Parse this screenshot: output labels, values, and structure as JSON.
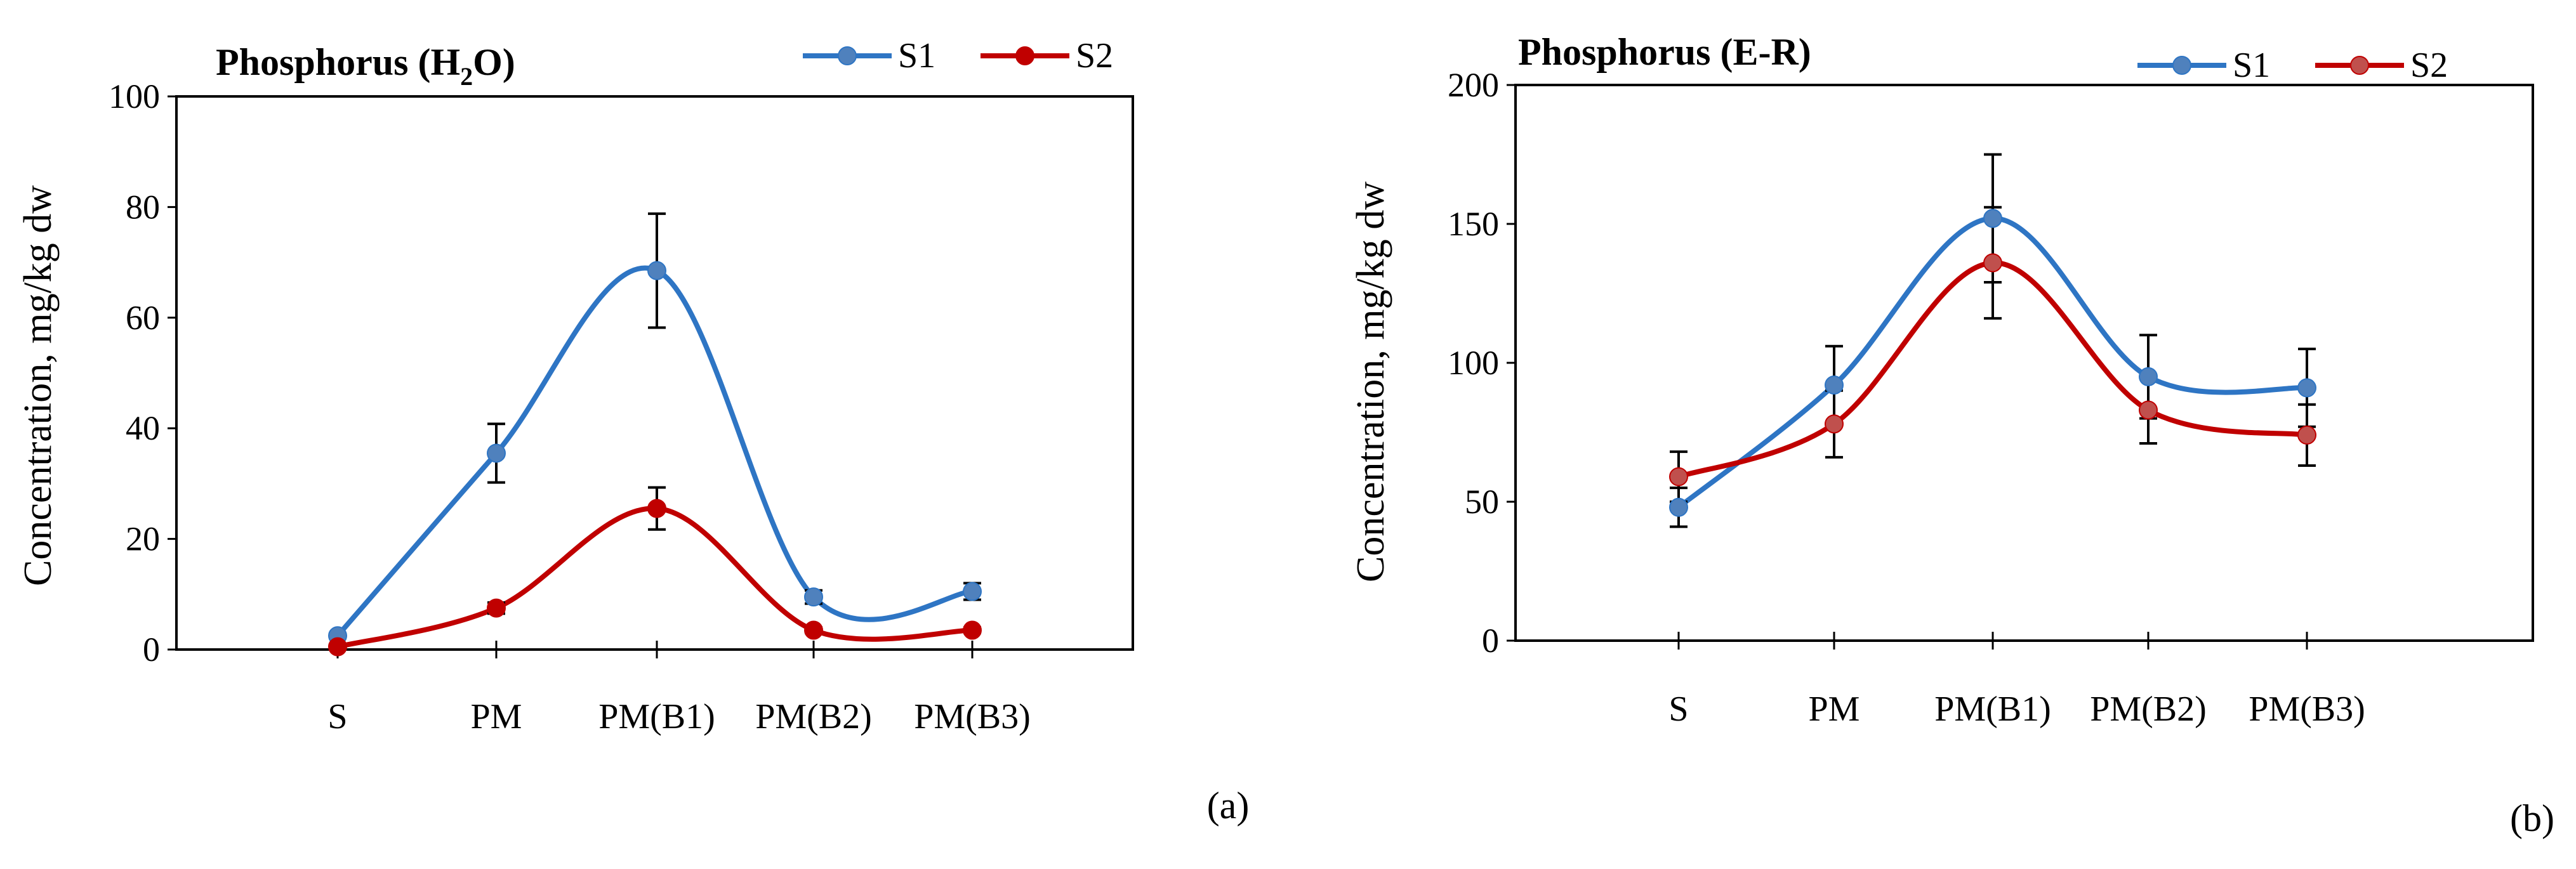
{
  "chart_data": [
    {
      "type": "line",
      "title": "Phosphorus (H",
      "title_sub": "2",
      "title_end": "O)",
      "ylabel": "Concentration,  mg/kg  dw",
      "xlabel": "",
      "ylim": [
        0,
        100
      ],
      "yticks": [
        "0",
        "20",
        "40",
        "60",
        "80",
        "100"
      ],
      "categories": [
        "S",
        "PM",
        "PM(B1)",
        "PM(B2)",
        "PM(B3)"
      ],
      "series": [
        {
          "name": "S1",
          "color": "#2e75c4",
          "marker": "#4f81bd",
          "values": [
            2.5,
            35.5,
            68.5,
            9.5,
            10.5
          ],
          "errors": [
            0,
            5.3,
            10.3,
            1.2,
            1.5
          ]
        },
        {
          "name": "S2",
          "color": "#c00000",
          "marker": "#c00000",
          "values": [
            0.5,
            7.5,
            25.5,
            3.5,
            3.5
          ],
          "errors": [
            0,
            1,
            3.8,
            0.5,
            0.5
          ]
        }
      ],
      "legend": "top-right",
      "grid": false,
      "panel_label": "(a)"
    },
    {
      "type": "line",
      "title": "Phosphorus (E-R)",
      "ylabel": "Concentration,  mg/kg  dw",
      "xlabel": "",
      "ylim": [
        0,
        200
      ],
      "yticks": [
        "0",
        "50",
        "100",
        "150",
        "200"
      ],
      "categories": [
        "S",
        "PM",
        "PM(B1)",
        "PM(B2)",
        "PM(B3)"
      ],
      "series": [
        {
          "name": "S1",
          "color": "#2e75c4",
          "marker": "#4f81bd",
          "values": [
            48,
            92,
            152,
            95,
            91
          ],
          "errors": [
            7,
            14,
            23,
            15,
            14
          ]
        },
        {
          "name": "S2",
          "color": "#c00000",
          "marker": "#c0504d",
          "values": [
            59,
            78,
            136,
            83,
            74
          ],
          "errors": [
            9,
            12,
            20,
            12,
            11
          ]
        }
      ],
      "legend": "top-right",
      "grid": false,
      "panel_label": "(b)"
    }
  ]
}
